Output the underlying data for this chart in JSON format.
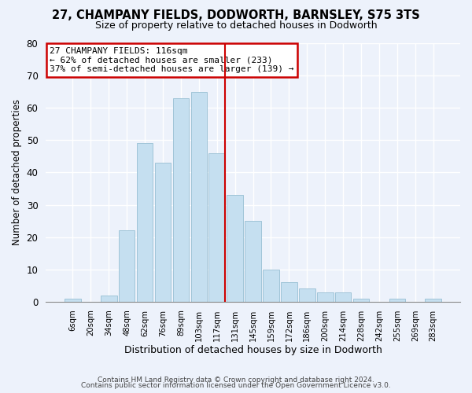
{
  "title1": "27, CHAMPANY FIELDS, DODWORTH, BARNSLEY, S75 3TS",
  "title2": "Size of property relative to detached houses in Dodworth",
  "xlabel": "Distribution of detached houses by size in Dodworth",
  "ylabel": "Number of detached properties",
  "footer1": "Contains HM Land Registry data © Crown copyright and database right 2024.",
  "footer2": "Contains public sector information licensed under the Open Government Licence v3.0.",
  "bar_labels": [
    "6sqm",
    "20sqm",
    "34sqm",
    "48sqm",
    "62sqm",
    "76sqm",
    "89sqm",
    "103sqm",
    "117sqm",
    "131sqm",
    "145sqm",
    "159sqm",
    "172sqm",
    "186sqm",
    "200sqm",
    "214sqm",
    "228sqm",
    "242sqm",
    "255sqm",
    "269sqm",
    "283sqm"
  ],
  "bar_values": [
    1,
    0,
    2,
    22,
    49,
    43,
    63,
    65,
    46,
    33,
    25,
    10,
    6,
    4,
    3,
    3,
    1,
    0,
    1,
    0,
    1
  ],
  "bar_color": "#c5dff0",
  "bar_edge_color": "#a0c4d8",
  "vline_index": 8,
  "vline_color": "#cc0000",
  "annotation_title": "27 CHAMPANY FIELDS: 116sqm",
  "annotation_line1": "← 62% of detached houses are smaller (233)",
  "annotation_line2": "37% of semi-detached houses are larger (139) →",
  "annotation_box_color": "#ffffff",
  "annotation_box_edge": "#cc0000",
  "ylim": [
    0,
    80
  ],
  "yticks": [
    0,
    10,
    20,
    30,
    40,
    50,
    60,
    70,
    80
  ],
  "bg_color": "#edf2fb"
}
